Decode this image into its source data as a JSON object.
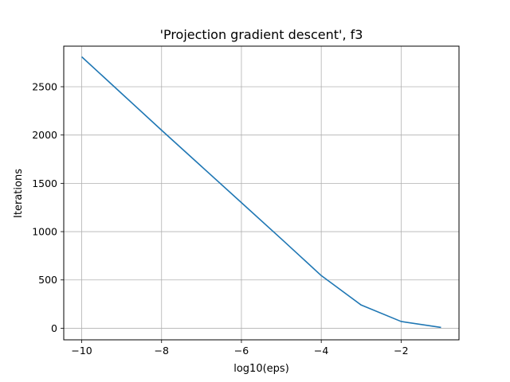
{
  "chart_data": {
    "type": "line",
    "title": "'Projection gradient descent', f3",
    "xlabel": "log10(eps)",
    "ylabel": "Iterations",
    "xlim": [
      -10.45,
      -0.55
    ],
    "ylim": [
      -120,
      2920
    ],
    "x_ticks": [
      -10,
      -8,
      -6,
      -4,
      -2
    ],
    "x_tick_labels": [
      "−10",
      "−8",
      "−6",
      "−4",
      "−2"
    ],
    "y_ticks": [
      0,
      500,
      1000,
      1500,
      2000,
      2500
    ],
    "y_tick_labels": [
      "0",
      "500",
      "1000",
      "1500",
      "2000",
      "2500"
    ],
    "grid": true,
    "series": [
      {
        "color": "#1f77b4",
        "x": [
          -10,
          -9,
          -8,
          -7,
          -6,
          -5,
          -4,
          -3,
          -2,
          -1
        ],
        "y": [
          2810,
          2430,
          2050,
          1675,
          1300,
          925,
          545,
          240,
          70,
          8
        ]
      }
    ]
  }
}
